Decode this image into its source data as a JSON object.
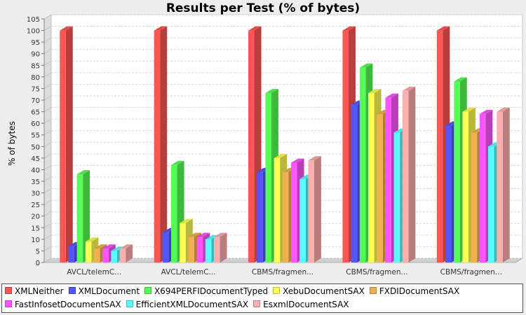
{
  "chart_data": {
    "type": "bar",
    "title": "Results per Test (% of bytes)",
    "xlabel": "",
    "ylabel": "% of bytes",
    "ylim": [
      0,
      105
    ],
    "ytick_step": 5,
    "grid": true,
    "legend_position": "bottom",
    "categories": [
      "AVCL/telemC...",
      "AVCL/telemC...",
      "CBMS/fragmen...",
      "CBMS/fragmen...",
      "CBMS/fragmen..."
    ],
    "series": [
      {
        "name": "XMLNeither",
        "color": "#ff5555",
        "values": [
          100,
          100,
          100,
          100,
          100
        ]
      },
      {
        "name": "XMLDocument",
        "color": "#5555ff",
        "values": [
          7,
          13,
          39,
          68,
          59
        ]
      },
      {
        "name": "X694PERFIDocumentTyped",
        "color": "#55ff55",
        "values": [
          38,
          42,
          73,
          84,
          78
        ]
      },
      {
        "name": "XebuDocumentSAX",
        "color": "#ffff55",
        "values": [
          9,
          17,
          45,
          73,
          65
        ]
      },
      {
        "name": "FXDIDocumentSAX",
        "color": "#f0b050",
        "values": [
          6,
          11,
          39,
          64,
          56
        ]
      },
      {
        "name": "FastInfosetDocumentSAX",
        "color": "#ff55ff",
        "values": [
          6,
          11,
          43,
          71,
          64
        ]
      },
      {
        "name": "EfficientXMLDocumentSAX",
        "color": "#55ffff",
        "values": [
          5,
          10,
          36,
          56,
          50
        ]
      },
      {
        "name": "EsxmlDocumentSAX",
        "color": "#ffafaf",
        "values": [
          6,
          11,
          44,
          74,
          65
        ]
      }
    ]
  }
}
